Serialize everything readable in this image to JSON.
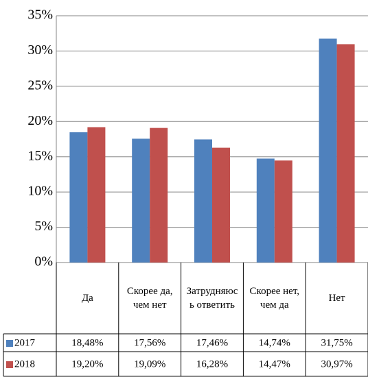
{
  "chart_data": {
    "type": "bar",
    "categories": [
      "Да",
      "Скорее да, чем нет",
      "Затрудняюсь ответить",
      "Скорее нет, чем да",
      "Нет"
    ],
    "series": [
      {
        "name": "2017",
        "color": "#4f81bd",
        "values": [
          18.48,
          17.56,
          17.46,
          14.74,
          31.75
        ],
        "value_labels": [
          "18,48%",
          "17,56%",
          "17,46%",
          "14,74%",
          "31,75%"
        ]
      },
      {
        "name": "2018",
        "color": "#c0504d",
        "values": [
          19.2,
          19.09,
          16.28,
          14.47,
          30.97
        ],
        "value_labels": [
          "19,20%",
          "19,09%",
          "16,28%",
          "14,47%",
          "30,97%"
        ]
      }
    ],
    "ylim": [
      0,
      35
    ],
    "yticks": [
      {
        "value": 0,
        "label": "0%"
      },
      {
        "value": 5,
        "label": "5%"
      },
      {
        "value": 10,
        "label": "10%"
      },
      {
        "value": 15,
        "label": "15%"
      },
      {
        "value": 20,
        "label": "20%"
      },
      {
        "value": 25,
        "label": "25%"
      },
      {
        "value": 30,
        "label": "30%"
      },
      {
        "value": 35,
        "label": "35%"
      }
    ],
    "grid": true,
    "data_table": true
  }
}
